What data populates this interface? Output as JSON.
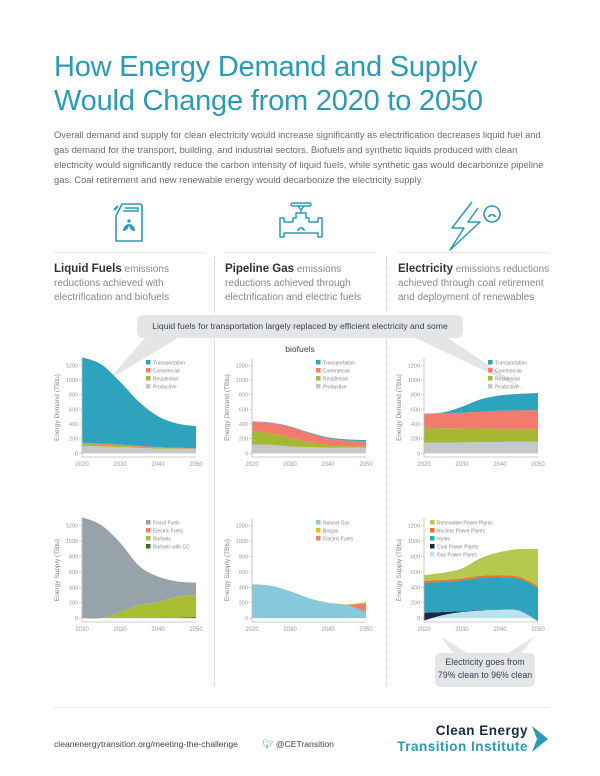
{
  "header": {
    "title_line1": "How Energy Demand and Supply",
    "title_line2": "Would Change from 2020 to 2050",
    "intro": "Overall demand and supply for clean electricity would increase significantly as electrification decreases liquid fuel and gas demand for the transport, building, and industrial sectors. Biofuels and synthetic liquids produced with clean electricity would significantly reduce the carbon intensity of liquid fuels, while synthetic gas would decarbonize pipeline gas. Coal retirement and new renewable energy would decarbonize the electricity supply."
  },
  "columns": [
    {
      "icon": "fuel-can-leaf-icon",
      "bold": "Liquid Fuels",
      "text": " emissions reductions achieved with electrification and biofuels"
    },
    {
      "icon": "pipeline-valve-leaf-icon",
      "bold": "Pipeline Gas",
      "text": " emissions reductions achieved through electrification and electric fuels"
    },
    {
      "icon": "lightning-leaf-icon",
      "bold": "Electricity",
      "text": " emissions reductions achieved through coal retirement and deployment of renewables"
    }
  ],
  "callouts": {
    "top": "Liquid fuels for transportation largely replaced by efficient electricity and some biofuels",
    "bottom_line1": "Electricity goes from",
    "bottom_line2": "79% clean to 96% clean"
  },
  "footer": {
    "url": "cleanenergytransition.org/meeting-the-challenge",
    "twitter": "@CETransition",
    "logo_line1": "Clean Energy",
    "logo_line2": "Transition Institute"
  },
  "colors": {
    "accent": "#2a9bb5",
    "transportation": "#2ea3bd",
    "commercial": "#f27b6b",
    "residential": "#a6b832",
    "productive": "#c3c8cc",
    "fossil": "#97a3ab",
    "electric_fuels": "#f27b6b",
    "biofuels": "#a9bd31",
    "biofuels_cc": "#3f6d2a",
    "natural_gas": "#86c9da",
    "biogas": "#d9c21e",
    "renewable": "#b5c94e",
    "nuclear": "#e8742a",
    "hydro": "#2ea3bd",
    "coal": "#1b2a44",
    "gas_power": "#b9e3ee"
  },
  "chart_data": [
    {
      "id": "liquid-demand",
      "type": "area",
      "stacked": true,
      "ylabel": "Energy Demand (TBtu)",
      "xlabel": "",
      "x": [
        2020,
        2025,
        2030,
        2035,
        2040,
        2045,
        2050
      ],
      "xticks": [
        "2020",
        "2030",
        "2040",
        "2050"
      ],
      "yticks": [
        "0",
        "200",
        "400",
        "600",
        "800",
        "1000",
        "1200"
      ],
      "ylim": [
        -50,
        1300
      ],
      "legend": "top-right",
      "series": [
        {
          "name": "Productive",
          "color": "#c3c8cc",
          "values": [
            100,
            95,
            85,
            75,
            65,
            60,
            55
          ]
        },
        {
          "name": "Residential",
          "color": "#a6b832",
          "values": [
            25,
            22,
            18,
            14,
            10,
            8,
            6
          ]
        },
        {
          "name": "Commercial",
          "color": "#f27b6b",
          "values": [
            20,
            18,
            15,
            12,
            10,
            8,
            7
          ]
        },
        {
          "name": "Transportation",
          "color": "#2ea3bd",
          "values": [
            1165,
            1080,
            860,
            600,
            420,
            330,
            302
          ]
        }
      ],
      "legend_order": [
        "Transportation",
        "Commercial",
        "Residential",
        "Productive"
      ]
    },
    {
      "id": "gas-demand",
      "type": "area",
      "stacked": true,
      "ylabel": "Energy Demand (TBtu)",
      "x": [
        2020,
        2025,
        2030,
        2035,
        2040,
        2045,
        2050
      ],
      "xticks": [
        "2020",
        "2030",
        "2040",
        "2050"
      ],
      "yticks": [
        "0",
        "200",
        "400",
        "600",
        "800",
        "1000",
        "1200"
      ],
      "ylim": [
        -50,
        1300
      ],
      "legend": "top-right",
      "series": [
        {
          "name": "Productive",
          "color": "#c3c8cc",
          "values": [
            120,
            115,
            95,
            85,
            80,
            80,
            80
          ]
        },
        {
          "name": "Residential",
          "color": "#a6b832",
          "values": [
            180,
            160,
            120,
            70,
            30,
            15,
            10
          ]
        },
        {
          "name": "Commercial",
          "color": "#f27b6b",
          "values": [
            130,
            140,
            145,
            120,
            95,
            80,
            75
          ]
        },
        {
          "name": "Transportation",
          "color": "#2ea3bd",
          "values": [
            5,
            5,
            8,
            10,
            12,
            15,
            15
          ]
        }
      ],
      "legend_order": [
        "Transportation",
        "Commercial",
        "Residential",
        "Productive"
      ]
    },
    {
      "id": "electricity-demand",
      "type": "area",
      "stacked": true,
      "ylabel": "Energy Demand (TBtu)",
      "x": [
        2020,
        2025,
        2030,
        2035,
        2040,
        2045,
        2050
      ],
      "xticks": [
        "2020",
        "2030",
        "2040",
        "2050"
      ],
      "yticks": [
        "0",
        "200",
        "400",
        "600",
        "800",
        "1000",
        "1200"
      ],
      "ylim": [
        -50,
        1300
      ],
      "legend": "top-right",
      "series": [
        {
          "name": "Productive",
          "color": "#c3c8cc",
          "values": [
            145,
            148,
            150,
            152,
            155,
            158,
            160
          ]
        },
        {
          "name": "Residential",
          "color": "#a6b832",
          "values": [
            200,
            195,
            190,
            185,
            180,
            175,
            170
          ]
        },
        {
          "name": "Commercial",
          "color": "#f27b6b",
          "values": [
            195,
            205,
            215,
            230,
            245,
            252,
            260
          ]
        },
        {
          "name": "Transportation",
          "color": "#2ea3bd",
          "values": [
            0,
            10,
            80,
            170,
            210,
            225,
            235
          ]
        }
      ],
      "legend_order": [
        "Transportation",
        "Commercial",
        "Residential",
        "Productive"
      ]
    },
    {
      "id": "liquid-supply",
      "type": "area",
      "stacked": true,
      "ylabel": "Energy Supply (TBtu)",
      "x": [
        2020,
        2025,
        2030,
        2035,
        2040,
        2045,
        2050
      ],
      "xticks": [
        "2020",
        "2030",
        "2040",
        "2050"
      ],
      "yticks": [
        "0",
        "200",
        "400",
        "600",
        "800",
        "1000",
        "1200"
      ],
      "ylim": [
        -50,
        1300
      ],
      "legend": "top-right",
      "series": [
        {
          "name": "Biofuels with CC",
          "color": "#3f6d2a",
          "values": [
            0,
            0,
            0,
            0,
            0,
            5,
            15
          ]
        },
        {
          "name": "Biofuels",
          "color": "#a9bd31",
          "values": [
            0,
            0,
            80,
            170,
            210,
            270,
            285
          ]
        },
        {
          "name": "Electric Fuels",
          "color": "#f27b6b",
          "values": [
            0,
            0,
            0,
            0,
            0,
            2,
            3
          ]
        },
        {
          "name": "Fossil Fuels",
          "color": "#97a3ab",
          "values": [
            1310,
            1210,
            900,
            510,
            330,
            200,
            157
          ]
        }
      ],
      "legend_order": [
        "Fossil Fuels",
        "Electric Fuels",
        "Biofuels",
        "Biofuels with CC"
      ]
    },
    {
      "id": "gas-supply",
      "type": "area",
      "stacked": true,
      "ylabel": "Energy Supply (TBtu)",
      "x": [
        2020,
        2025,
        2030,
        2035,
        2040,
        2045,
        2050
      ],
      "xticks": [
        "2020",
        "2030",
        "2040",
        "2050"
      ],
      "yticks": [
        "0",
        "200",
        "400",
        "600",
        "800",
        "1000",
        "1200"
      ],
      "ylim": [
        -50,
        1300
      ],
      "legend": "top-right",
      "series": [
        {
          "name": "Natural Gas",
          "color": "#86c9da",
          "values": [
            440,
            420,
            350,
            260,
            200,
            170,
            80
          ]
        },
        {
          "name": "Electric Fuels",
          "color": "#f27b6b",
          "values": [
            0,
            0,
            0,
            0,
            0,
            5,
            110
          ]
        },
        {
          "name": "Biogas",
          "color": "#d9c21e",
          "values": [
            0,
            0,
            0,
            0,
            0,
            5,
            20
          ]
        }
      ],
      "legend_order": [
        "Natural Gas",
        "Biogas",
        "Electric Fuels"
      ]
    },
    {
      "id": "electricity-supply",
      "type": "area",
      "stacked": true,
      "ylabel": "Energy Supply (TBtu)",
      "x": [
        2020,
        2025,
        2030,
        2035,
        2040,
        2045,
        2050
      ],
      "xticks": [
        "2020",
        "2030",
        "2040",
        "2050"
      ],
      "yticks": [
        "0",
        "200",
        "400",
        "600",
        "800",
        "1000",
        "1200"
      ],
      "ylim": [
        -50,
        1300
      ],
      "legend": "top-right",
      "series": [
        {
          "name": "Gas Power Plants",
          "color": "#b9e3ee",
          "values": [
            -30,
            40,
            80,
            100,
            110,
            100,
            -40
          ]
        },
        {
          "name": "Coal Power Plants",
          "color": "#1b2a44",
          "values": [
            100,
            40,
            10,
            5,
            3,
            2,
            2
          ]
        },
        {
          "name": "Hydro",
          "color": "#2ea3bd",
          "values": [
            390,
            390,
            400,
            420,
            420,
            410,
            430
          ]
        },
        {
          "name": "Nuclear Power Plants",
          "color": "#e8742a",
          "values": [
            25,
            25,
            25,
            25,
            25,
            25,
            25
          ]
        },
        {
          "name": "Renewable Power Plants",
          "color": "#b5c94e",
          "values": [
            75,
            95,
            130,
            230,
            300,
            360,
            480
          ]
        }
      ],
      "legend_order": [
        "Renewable Power Plants",
        "Nuclear Power Plants",
        "Hydro",
        "Coal Power Plants",
        "Gas Power Plants"
      ]
    }
  ]
}
